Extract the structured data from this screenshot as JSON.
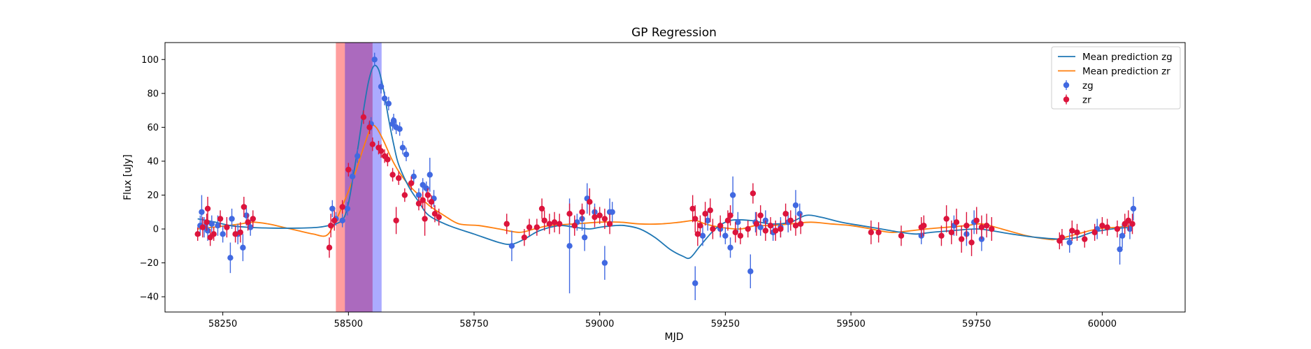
{
  "chart_data": {
    "type": "line",
    "title": "GP Regression",
    "xlabel": "MJD",
    "ylabel": "Flux [uJy]",
    "xlim": [
      58135,
      60165
    ],
    "ylim": [
      -49,
      110
    ],
    "xticks": [
      58250,
      58500,
      58750,
      59000,
      59250,
      59500,
      59750,
      60000
    ],
    "yticks": [
      -40,
      -20,
      0,
      20,
      40,
      60,
      80,
      100
    ],
    "legend_position": "top-right",
    "colors": {
      "zg": "#4169e1",
      "zr": "#dc143c",
      "mean_zg": "#1f77b4",
      "mean_zr": "#ff7f0e"
    },
    "shaded_regions": [
      {
        "x": [
          58475,
          58548
        ],
        "color": "#ff0000",
        "opacity": 0.38
      },
      {
        "x": [
          58493,
          58566
        ],
        "color": "#0000ff",
        "opacity": 0.33
      }
    ],
    "legend": [
      {
        "label": "Mean prediction zg",
        "kind": "line",
        "color": "#1f77b4"
      },
      {
        "label": "Mean prediction zr",
        "kind": "line",
        "color": "#ff7f0e"
      },
      {
        "label": "zg",
        "kind": "errorbar",
        "color": "#4169e1"
      },
      {
        "label": "zr",
        "kind": "errorbar",
        "color": "#dc143c"
      }
    ],
    "mean_zg": [
      [
        58200,
        6
      ],
      [
        58235,
        4
      ],
      [
        58265,
        2
      ],
      [
        58300,
        1
      ],
      [
        58350,
        0.5
      ],
      [
        58400,
        0.5
      ],
      [
        58440,
        1
      ],
      [
        58460,
        2
      ],
      [
        58475,
        3
      ],
      [
        58490,
        6
      ],
      [
        58500,
        15
      ],
      [
        58510,
        32
      ],
      [
        58520,
        50
      ],
      [
        58530,
        70
      ],
      [
        58540,
        87
      ],
      [
        58550,
        96
      ],
      [
        58560,
        94
      ],
      [
        58570,
        82
      ],
      [
        58580,
        65
      ],
      [
        58590,
        50
      ],
      [
        58600,
        38
      ],
      [
        58620,
        25
      ],
      [
        58640,
        16
      ],
      [
        58660,
        8
      ],
      [
        58700,
        2
      ],
      [
        58750,
        -3
      ],
      [
        58800,
        -8
      ],
      [
        58825,
        -9
      ],
      [
        58850,
        -6
      ],
      [
        58880,
        -1
      ],
      [
        58920,
        2
      ],
      [
        58950,
        1
      ],
      [
        58980,
        0
      ],
      [
        59000,
        1
      ],
      [
        59030,
        2
      ],
      [
        59050,
        2
      ],
      [
        59080,
        0
      ],
      [
        59110,
        -5
      ],
      [
        59140,
        -12
      ],
      [
        59165,
        -16
      ],
      [
        59180,
        -17
      ],
      [
        59200,
        -10
      ],
      [
        59230,
        0
      ],
      [
        59260,
        5
      ],
      [
        59300,
        5
      ],
      [
        59340,
        3
      ],
      [
        59380,
        4
      ],
      [
        59410,
        8
      ],
      [
        59440,
        7
      ],
      [
        59480,
        4
      ],
      [
        59520,
        2
      ],
      [
        59560,
        0
      ],
      [
        59600,
        -2
      ],
      [
        59630,
        -3
      ],
      [
        59660,
        -2
      ],
      [
        59700,
        -1
      ],
      [
        59750,
        0
      ],
      [
        59780,
        -1
      ],
      [
        59820,
        -3
      ],
      [
        59870,
        -5
      ],
      [
        59920,
        -6
      ],
      [
        59950,
        -5
      ],
      [
        59980,
        -2
      ],
      [
        60020,
        0
      ],
      [
        60060,
        1
      ]
    ],
    "mean_zr": [
      [
        58200,
        0
      ],
      [
        58230,
        1
      ],
      [
        58260,
        2
      ],
      [
        58285,
        3
      ],
      [
        58310,
        4
      ],
      [
        58340,
        3
      ],
      [
        58370,
        1
      ],
      [
        58400,
        -1
      ],
      [
        58430,
        -3
      ],
      [
        58455,
        -4
      ],
      [
        58470,
        2
      ],
      [
        58490,
        15
      ],
      [
        58510,
        30
      ],
      [
        58530,
        48
      ],
      [
        58545,
        60
      ],
      [
        58555,
        60
      ],
      [
        58570,
        52
      ],
      [
        58585,
        42
      ],
      [
        58600,
        34
      ],
      [
        58620,
        26
      ],
      [
        58640,
        20
      ],
      [
        58660,
        14
      ],
      [
        58690,
        8
      ],
      [
        58720,
        3
      ],
      [
        58760,
        2
      ],
      [
        58800,
        0
      ],
      [
        58840,
        -2
      ],
      [
        58870,
        0
      ],
      [
        58900,
        2
      ],
      [
        58950,
        3
      ],
      [
        59000,
        4
      ],
      [
        59040,
        4
      ],
      [
        59080,
        3
      ],
      [
        59120,
        3
      ],
      [
        59160,
        4
      ],
      [
        59190,
        5
      ],
      [
        59210,
        3
      ],
      [
        59240,
        1
      ],
      [
        59280,
        0
      ],
      [
        59310,
        2
      ],
      [
        59340,
        2
      ],
      [
        59380,
        3
      ],
      [
        59420,
        4
      ],
      [
        59460,
        3
      ],
      [
        59500,
        2
      ],
      [
        59540,
        0
      ],
      [
        59580,
        -2
      ],
      [
        59620,
        -1
      ],
      [
        59650,
        0
      ],
      [
        59690,
        1
      ],
      [
        59730,
        2
      ],
      [
        59760,
        3
      ],
      [
        59800,
        0
      ],
      [
        59850,
        -4
      ],
      [
        59890,
        -6
      ],
      [
        59910,
        -6
      ],
      [
        59950,
        -3
      ],
      [
        59990,
        0
      ],
      [
        60030,
        1
      ],
      [
        60060,
        2
      ]
    ],
    "zg": [
      [
        58205,
        2,
        6
      ],
      [
        58208,
        10,
        10
      ],
      [
        58213,
        1,
        6
      ],
      [
        58220,
        -1,
        6
      ],
      [
        58228,
        3,
        5
      ],
      [
        58240,
        2,
        6
      ],
      [
        58250,
        -3,
        5
      ],
      [
        58265,
        -17,
        9
      ],
      [
        58268,
        6,
        6
      ],
      [
        58280,
        -3,
        6
      ],
      [
        58290,
        -11,
        8
      ],
      [
        58297,
        8,
        6
      ],
      [
        58305,
        1,
        5
      ],
      [
        58468,
        12,
        5
      ],
      [
        58475,
        6,
        4
      ],
      [
        58488,
        5,
        4
      ],
      [
        58498,
        12,
        4
      ],
      [
        58508,
        31,
        4
      ],
      [
        58518,
        43,
        4
      ],
      [
        58545,
        62,
        4
      ],
      [
        58552,
        100,
        4
      ],
      [
        58565,
        84,
        4
      ],
      [
        58572,
        77,
        4
      ],
      [
        58580,
        74,
        4
      ],
      [
        58588,
        62,
        4
      ],
      [
        58590,
        64,
        4
      ],
      [
        58595,
        60,
        4
      ],
      [
        58602,
        59,
        4
      ],
      [
        58608,
        48,
        4
      ],
      [
        58615,
        44,
        4
      ],
      [
        58630,
        31,
        4
      ],
      [
        58640,
        20,
        4
      ],
      [
        58648,
        26,
        4
      ],
      [
        58655,
        24,
        4
      ],
      [
        58662,
        32,
        10
      ],
      [
        58670,
        18,
        5
      ],
      [
        58825,
        -10,
        9
      ],
      [
        58940,
        -10,
        28
      ],
      [
        58955,
        4,
        5
      ],
      [
        58965,
        6,
        7
      ],
      [
        58970,
        -5,
        8
      ],
      [
        58975,
        18,
        9
      ],
      [
        58990,
        10,
        5
      ],
      [
        59010,
        -20,
        10
      ],
      [
        59020,
        10,
        8
      ],
      [
        59025,
        10,
        6
      ],
      [
        59190,
        -32,
        10
      ],
      [
        59205,
        -4,
        6
      ],
      [
        59215,
        5,
        6
      ],
      [
        59240,
        0,
        5
      ],
      [
        59250,
        -4,
        5
      ],
      [
        59260,
        -11,
        6
      ],
      [
        59265,
        20,
        11
      ],
      [
        59275,
        4,
        6
      ],
      [
        59300,
        -25,
        10
      ],
      [
        59310,
        4,
        6
      ],
      [
        59320,
        1,
        5
      ],
      [
        59330,
        5,
        6
      ],
      [
        59345,
        -2,
        5
      ],
      [
        59360,
        1,
        6
      ],
      [
        59375,
        4,
        6
      ],
      [
        59390,
        14,
        9
      ],
      [
        59398,
        9,
        6
      ],
      [
        59640,
        -4,
        5
      ],
      [
        59705,
        2,
        6
      ],
      [
        59730,
        -3,
        7
      ],
      [
        59745,
        4,
        7
      ],
      [
        59760,
        -6,
        7
      ],
      [
        59935,
        -8,
        6
      ],
      [
        59990,
        0,
        6
      ],
      [
        60035,
        -12,
        9
      ],
      [
        60040,
        -4,
        7
      ],
      [
        60055,
        0,
        6
      ],
      [
        60062,
        12,
        7
      ]
    ],
    "zr": [
      [
        58200,
        -3,
        4
      ],
      [
        58210,
        1,
        6
      ],
      [
        58218,
        4,
        5
      ],
      [
        58220,
        12,
        7
      ],
      [
        58225,
        -5,
        5
      ],
      [
        58232,
        -3,
        4
      ],
      [
        58245,
        6,
        5
      ],
      [
        58258,
        1,
        6
      ],
      [
        58275,
        -3,
        5
      ],
      [
        58285,
        -2,
        6
      ],
      [
        58292,
        13,
        6
      ],
      [
        58300,
        4,
        5
      ],
      [
        58310,
        6,
        5
      ],
      [
        58462,
        -11,
        6
      ],
      [
        58465,
        2,
        7
      ],
      [
        58472,
        5,
        6
      ],
      [
        58488,
        13,
        4
      ],
      [
        58500,
        35,
        4
      ],
      [
        58530,
        66,
        4
      ],
      [
        58542,
        60,
        4
      ],
      [
        58548,
        50,
        4
      ],
      [
        58560,
        48,
        4
      ],
      [
        58565,
        46,
        4
      ],
      [
        58572,
        43,
        4
      ],
      [
        58578,
        41,
        4
      ],
      [
        58588,
        32,
        4
      ],
      [
        58595,
        5,
        8
      ],
      [
        58600,
        30,
        4
      ],
      [
        58612,
        20,
        4
      ],
      [
        58625,
        27,
        4
      ],
      [
        58640,
        15,
        4
      ],
      [
        58648,
        17,
        5
      ],
      [
        58652,
        6,
        10
      ],
      [
        58658,
        20,
        4
      ],
      [
        58665,
        16,
        4
      ],
      [
        58672,
        9,
        5
      ],
      [
        58680,
        7,
        5
      ],
      [
        58815,
        3,
        6
      ],
      [
        58850,
        -5,
        5
      ],
      [
        58860,
        1,
        5
      ],
      [
        58875,
        1,
        5
      ],
      [
        58885,
        12,
        6
      ],
      [
        58890,
        5,
        6
      ],
      [
        58900,
        3,
        6
      ],
      [
        58910,
        4,
        6
      ],
      [
        58920,
        3,
        6
      ],
      [
        58940,
        9,
        6
      ],
      [
        58950,
        2,
        6
      ],
      [
        58965,
        10,
        5
      ],
      [
        58980,
        16,
        8
      ],
      [
        58990,
        7,
        6
      ],
      [
        59000,
        8,
        5
      ],
      [
        59010,
        6,
        6
      ],
      [
        59020,
        3,
        6
      ],
      [
        59185,
        12,
        8
      ],
      [
        59190,
        6,
        8
      ],
      [
        59195,
        -3,
        7
      ],
      [
        59200,
        2,
        6
      ],
      [
        59210,
        9,
        7
      ],
      [
        59220,
        11,
        7
      ],
      [
        59225,
        0,
        6
      ],
      [
        59240,
        2,
        6
      ],
      [
        59255,
        5,
        6
      ],
      [
        59260,
        8,
        6
      ],
      [
        59270,
        -2,
        6
      ],
      [
        59280,
        -4,
        5
      ],
      [
        59295,
        0,
        5
      ],
      [
        59305,
        21,
        6
      ],
      [
        59312,
        3,
        7
      ],
      [
        59320,
        8,
        6
      ],
      [
        59330,
        -1,
        6
      ],
      [
        59340,
        2,
        5
      ],
      [
        59350,
        -1,
        6
      ],
      [
        59360,
        0,
        5
      ],
      [
        59370,
        9,
        6
      ],
      [
        59380,
        5,
        6
      ],
      [
        59390,
        2,
        6
      ],
      [
        59400,
        3,
        6
      ],
      [
        59540,
        -2,
        7
      ],
      [
        59555,
        -2,
        6
      ],
      [
        59600,
        -4,
        6
      ],
      [
        59640,
        1,
        6
      ],
      [
        59645,
        2,
        6
      ],
      [
        59680,
        -4,
        6
      ],
      [
        59690,
        6,
        8
      ],
      [
        59700,
        -2,
        7
      ],
      [
        59710,
        4,
        8
      ],
      [
        59720,
        -6,
        8
      ],
      [
        59730,
        2,
        8
      ],
      [
        59740,
        -8,
        8
      ],
      [
        59750,
        5,
        8
      ],
      [
        59760,
        1,
        7
      ],
      [
        59770,
        2,
        7
      ],
      [
        59780,
        0,
        7
      ],
      [
        59915,
        -7,
        5
      ],
      [
        59920,
        -5,
        5
      ],
      [
        59940,
        -1,
        6
      ],
      [
        59950,
        -2,
        5
      ],
      [
        59965,
        -6,
        5
      ],
      [
        59985,
        -2,
        5
      ],
      [
        60000,
        2,
        5
      ],
      [
        60010,
        1,
        5
      ],
      [
        60030,
        0,
        5
      ],
      [
        60045,
        3,
        6
      ],
      [
        60052,
        5,
        6
      ],
      [
        60060,
        3,
        6
      ]
    ]
  }
}
